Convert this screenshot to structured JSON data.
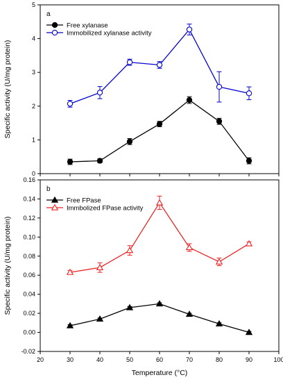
{
  "x_axis": {
    "label": "Temperature (°C)",
    "range": [
      20,
      100
    ],
    "ticks": [
      20,
      30,
      40,
      50,
      60,
      70,
      80,
      90,
      100
    ]
  },
  "chart_data": [
    {
      "type": "line",
      "panel": "a",
      "ylabel": "Specific activity (U/mg protein)",
      "xlabel": "",
      "xlim": [
        20,
        100
      ],
      "ylim": [
        0,
        5
      ],
      "yticks": [
        0,
        1,
        2,
        3,
        4,
        5
      ],
      "legend_position": "top-left",
      "x": [
        30,
        40,
        50,
        60,
        70,
        80,
        90
      ],
      "series": [
        {
          "name": "Free xylanase",
          "color": "#000000",
          "marker": "filled-circle",
          "values": [
            0.35,
            0.38,
            0.95,
            1.47,
            2.18,
            1.55,
            0.38
          ],
          "errors": [
            0.08,
            0.06,
            0.09,
            0.08,
            0.1,
            0.09,
            0.09
          ]
        },
        {
          "name": "Immobilized xylanase activity",
          "color": "#0000cc",
          "marker": "open-circle",
          "values": [
            2.07,
            2.4,
            3.3,
            3.22,
            4.27,
            2.57,
            2.38
          ],
          "errors": [
            0.1,
            0.18,
            0.09,
            0.1,
            0.16,
            0.45,
            0.19
          ]
        }
      ]
    },
    {
      "type": "line",
      "panel": "b",
      "ylabel": "Specific activity (U/mg protein)",
      "xlabel": "Temperature (°C)",
      "xlim": [
        20,
        100
      ],
      "ylim": [
        -0.02,
        0.16
      ],
      "yticks": [
        -0.02,
        0.0,
        0.02,
        0.04,
        0.06,
        0.08,
        0.1,
        0.12,
        0.14,
        0.16
      ],
      "ytick_labels": [
        "-0.02",
        "0.00",
        "0.02",
        "0.04",
        "0.06",
        "0.08",
        "0.10",
        "0.12",
        "0.14",
        "0.16"
      ],
      "legend_position": "top-left",
      "x": [
        30,
        40,
        50,
        60,
        70,
        80,
        90
      ],
      "series": [
        {
          "name": "Free FPase",
          "color": "#000000",
          "marker": "filled-triangle",
          "values": [
            0.007,
            0.014,
            0.026,
            0.03,
            0.019,
            0.009,
            0.0
          ],
          "errors": [
            0.001,
            0.001,
            0.001,
            0.001,
            0.001,
            0.001,
            0.001
          ]
        },
        {
          "name": "Immbolized FPase activity",
          "color": "#ee2222",
          "marker": "open-triangle",
          "values": [
            0.063,
            0.068,
            0.086,
            0.136,
            0.089,
            0.074,
            0.093
          ],
          "errors": [
            0.002,
            0.005,
            0.005,
            0.007,
            0.004,
            0.004,
            0.002
          ]
        }
      ]
    }
  ]
}
